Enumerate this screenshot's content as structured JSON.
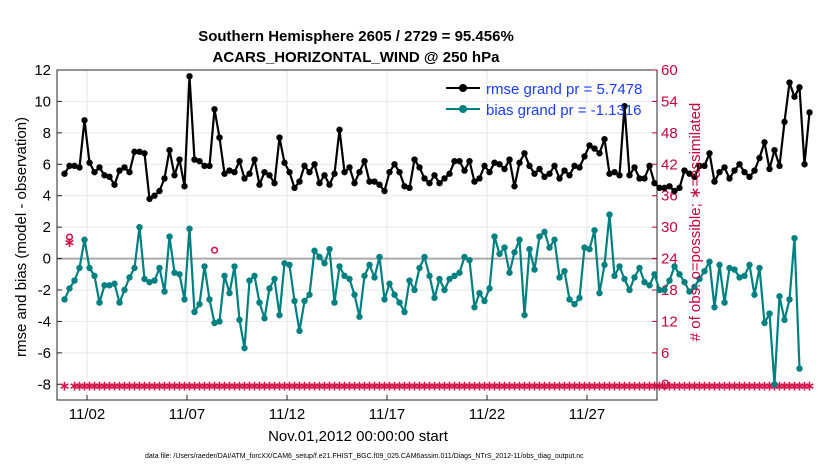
{
  "chart_data": {
    "type": "line",
    "title": [
      "Southern Hemisphere 2605 / 2729 = 95.456%",
      "ACARS_HORIZONTAL_WIND @ 250 hPa"
    ],
    "xlabel": "Nov.01,2012 00:00:00 start",
    "ylabel": "rmse and bias (model - observation)",
    "ylabel_right": "# of obs: o=possible; ∗=assimilated",
    "footer": "data file: /Users/raeder/DAI/ATM_forcXX/CAM6_setup/f.e21.FHIST_BGC.f09_025.CAM6assim.011/Diags_NTrS_2012-11/obs_diag_output.nc",
    "xlim": [
      0.5,
      30.5
    ],
    "ylim": [
      -9,
      12
    ],
    "ylim_right": [
      -3,
      60
    ],
    "x_ticks": [
      {
        "x": 2,
        "label": "11/02"
      },
      {
        "x": 7,
        "label": "11/07"
      },
      {
        "x": 12,
        "label": "11/12"
      },
      {
        "x": 17,
        "label": "11/17"
      },
      {
        "x": 22,
        "label": "11/22"
      },
      {
        "x": 27,
        "label": "11/27"
      }
    ],
    "y_ticks": [
      "12",
      "10",
      "8",
      "6",
      "4",
      "2",
      "0",
      "-2",
      "-4",
      "-6",
      "-8"
    ],
    "y_ticks_right": [
      "60",
      "54",
      "48",
      "42",
      "36",
      "30",
      "24",
      "18",
      "12",
      "6",
      "0"
    ],
    "legend": {
      "rmse": "rmse grand pr = 5.7478",
      "bias": "bias grand pr = -1.1316"
    },
    "colors": {
      "rmse": "#000000",
      "bias": "#008080",
      "obs": "#d2144b",
      "zero": "#aaaaaa"
    },
    "x_start": 0.875,
    "x_step": 0.25,
    "rmse": [
      5.4,
      5.9,
      5.9,
      5.8,
      8.8,
      6.1,
      5.5,
      5.8,
      5.3,
      5.2,
      4.7,
      5.6,
      5.8,
      5.5,
      6.8,
      6.8,
      6.7,
      3.8,
      4.0,
      4.3,
      5.1,
      6.9,
      5.3,
      6.3,
      4.6,
      11.6,
      6.3,
      6.2,
      5.9,
      5.9,
      9.5,
      7.7,
      5.4,
      5.6,
      5.5,
      6.2,
      5.1,
      5.4,
      6.3,
      4.7,
      5.5,
      5.3,
      4.8,
      7.7,
      6.1,
      5.5,
      4.5,
      4.9,
      5.9,
      5.5,
      6.0,
      4.8,
      5.3,
      4.7,
      5.4,
      8.2,
      5.5,
      5.8,
      4.8,
      5.5,
      6.2,
      4.9,
      4.9,
      4.7,
      4.3,
      5.5,
      6.0,
      5.5,
      4.6,
      4.5,
      6.3,
      5.8,
      5.1,
      4.8,
      5.3,
      4.8,
      5.1,
      5.4,
      6.2,
      6.2,
      5.6,
      6.2,
      4.9,
      5.1,
      5.9,
      5.5,
      6.1,
      6.0,
      5.7,
      6.3,
      4.6,
      6.1,
      6.7,
      5.9,
      5.4,
      5.7,
      5.2,
      5.4,
      5.9,
      5.1,
      5.6,
      5.3,
      5.9,
      5.8,
      6.5,
      7.2,
      7.0,
      6.7,
      7.6,
      5.4,
      5.5,
      5.3,
      9.7,
      5.3,
      5.8,
      5.1,
      5.1,
      5.9,
      4.8,
      4.5,
      4.5,
      4.6,
      4.3,
      4.5,
      5.6,
      5.4,
      5.2,
      5.9,
      5.9,
      6.7,
      4.9,
      5.5,
      5.8,
      5.1,
      5.6,
      6.0,
      5.5,
      5.2,
      5.6,
      6.4,
      7.4,
      5.7,
      6.9,
      5.9,
      8.7,
      11.2,
      10.3,
      10.9,
      6.0,
      9.3
    ],
    "bias": [
      -2.6,
      -1.9,
      -1.4,
      -0.6,
      1.2,
      -0.6,
      -1.1,
      -2.8,
      -1.7,
      -1.7,
      -1.6,
      -2.8,
      -2.0,
      -1.2,
      -0.6,
      2.0,
      -1.3,
      -1.5,
      -1.4,
      -0.6,
      -2.1,
      1.4,
      -0.9,
      -1.0,
      -2.6,
      1.9,
      -3.4,
      -2.9,
      -0.5,
      -2.6,
      -4.1,
      -4.0,
      -1.1,
      -2.2,
      -0.5,
      -3.9,
      -5.7,
      -1.4,
      -1.1,
      -2.8,
      -3.8,
      -1.9,
      -1.3,
      -3.6,
      -0.3,
      -0.4,
      -2.7,
      -4.6,
      -2.7,
      -2.3,
      0.5,
      0.1,
      -0.3,
      0.6,
      -2.8,
      -0.5,
      -1.1,
      -1.3,
      -2.3,
      -3.7,
      -1.1,
      -0.4,
      -1.2,
      0.1,
      -2.6,
      -1.6,
      -2.3,
      -2.8,
      -3.4,
      -1.4,
      -2.0,
      -0.6,
      0.1,
      -1.1,
      -2.5,
      -1.3,
      -2.0,
      -1.3,
      -1.1,
      -0.9,
      0.1,
      -0.1,
      -3.1,
      -2.2,
      -2.7,
      -1.9,
      1.4,
      0.3,
      0.7,
      -0.9,
      0.4,
      1.2,
      -3.6,
      0.6,
      -0.7,
      1.4,
      1.7,
      0.7,
      1.2,
      -1.2,
      -0.8,
      -2.6,
      -2.9,
      -2.5,
      0.7,
      0.6,
      1.8,
      -2.2,
      -0.4,
      2.8,
      -1.1,
      -0.5,
      -1.3,
      -2.0,
      -1.2,
      -0.6,
      -1.5,
      -1.7,
      -1.0,
      -2.0,
      -2.0,
      -1.4,
      -0.5,
      -1.0,
      -1.5,
      -2.1,
      -1.8,
      -1.3,
      -0.8,
      -0.2,
      -3.1,
      -0.4,
      -2.8,
      -0.6,
      -0.7,
      -1.2,
      -1.1,
      -0.4,
      -2.3,
      -0.6,
      -4.1,
      -3.5,
      -8.0,
      -2.4,
      -3.9,
      -2.6,
      1.3,
      -7.0
    ],
    "obs_possible": [
      null,
      28.1,
      null,
      null,
      null,
      null,
      null,
      null,
      null,
      null,
      null,
      null,
      null,
      null,
      null,
      null,
      null,
      null,
      null,
      null,
      null,
      null,
      null,
      null,
      null,
      null,
      null,
      null,
      null,
      null,
      25.6,
      null,
      null,
      null,
      null,
      null,
      null,
      null,
      null,
      null,
      null,
      null,
      null,
      null,
      null,
      null,
      null,
      null,
      null,
      null,
      null,
      null,
      null,
      null,
      null,
      null,
      null,
      null,
      null,
      null,
      null,
      null,
      null,
      null,
      null,
      null,
      null,
      null,
      null,
      null,
      null,
      null,
      null,
      null,
      null,
      null,
      null,
      null,
      null,
      null,
      null,
      null,
      null,
      null,
      null,
      null,
      null,
      null,
      null,
      null,
      null,
      null,
      null,
      null,
      null,
      null,
      null,
      null,
      null,
      null,
      null,
      null,
      null,
      null,
      null,
      null,
      null,
      null,
      null,
      null,
      null,
      null,
      null,
      null,
      null,
      null,
      null,
      null,
      null,
      null,
      null,
      null,
      null,
      null,
      null,
      null,
      null,
      null,
      null,
      null,
      null,
      null,
      null,
      null,
      null,
      null,
      null,
      null,
      null,
      null,
      null,
      null,
      null,
      null,
      null,
      null,
      null,
      null,
      null,
      null
    ],
    "obs_assimilated": [
      0,
      27.4,
      0,
      0,
      0,
      0,
      0,
      0,
      0,
      0,
      0,
      0,
      0,
      0,
      0,
      0,
      0,
      0,
      0,
      0,
      0,
      0,
      0,
      0,
      0,
      0,
      0,
      0,
      0,
      0,
      0,
      0,
      0,
      0,
      0,
      0,
      0,
      0,
      0,
      0,
      0,
      0,
      0,
      0,
      0,
      0,
      0,
      0,
      0,
      0,
      0,
      0,
      0,
      0,
      0,
      0,
      0,
      0,
      0,
      0,
      0,
      0,
      0,
      0,
      0,
      0,
      0,
      0,
      0,
      0,
      0,
      0,
      0,
      0,
      0,
      0,
      0,
      0,
      0,
      0,
      0,
      0,
      0,
      0,
      0,
      0,
      0,
      0,
      0,
      0,
      0,
      0,
      0,
      0,
      0,
      0,
      0,
      0,
      0,
      0,
      0,
      0,
      0,
      0,
      0,
      0,
      0,
      0,
      0,
      0,
      0,
      0,
      0,
      0,
      0,
      0,
      0,
      0,
      0,
      0,
      0,
      0,
      0,
      0,
      0,
      0,
      0,
      0,
      0,
      0,
      0,
      0,
      0,
      0,
      0,
      0,
      0,
      0,
      0,
      0,
      0,
      0,
      0,
      0,
      0,
      0,
      0,
      0,
      0,
      0
    ]
  }
}
